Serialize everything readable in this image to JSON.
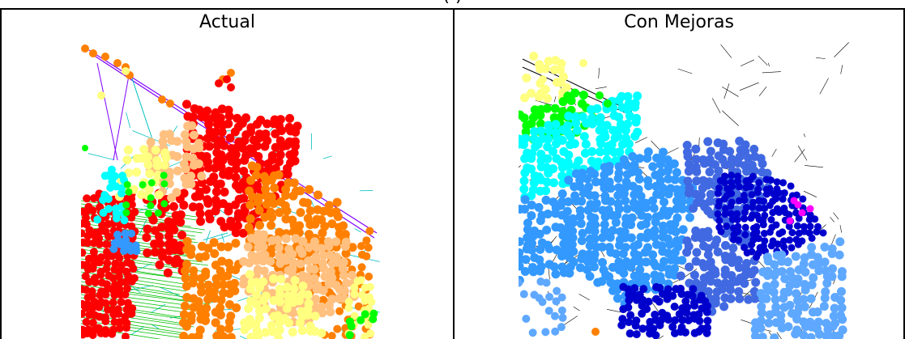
{
  "figure": {
    "top_caption_fragment": "(                                  )"
  },
  "panels": [
    {
      "id": "actual",
      "title": "Actual",
      "legend_colors": [
        "#ff0000",
        "#ff8000",
        "#ffc080",
        "#ffff80",
        "#00ff00",
        "#00ffff",
        "#3399ff"
      ],
      "pipe_colors": [
        "#00c0c0",
        "#8000ff",
        "#00c000"
      ]
    },
    {
      "id": "con-mejoras",
      "title": "Con Mejoras",
      "legend_colors": [
        "#00ffff",
        "#3399ff",
        "#4169e1",
        "#0000cd",
        "#5fa8ff",
        "#ff00ff",
        "#00ff00",
        "#ffff80",
        "#ff8000"
      ],
      "pipe_colors": [
        "#000000"
      ]
    }
  ]
}
